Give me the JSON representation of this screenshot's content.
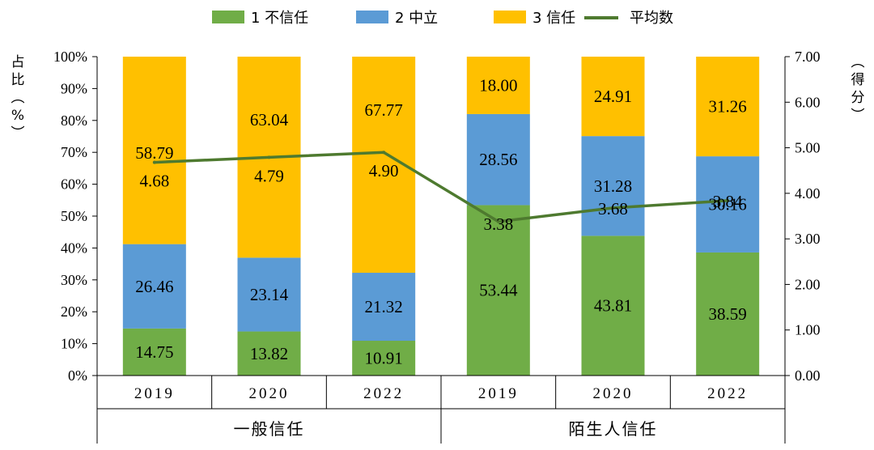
{
  "chart_data": {
    "type": "bar",
    "stacked": true,
    "categories": [
      "2019",
      "2020",
      "2022",
      "2019",
      "2020",
      "2022"
    ],
    "groups": [
      {
        "label": "一般信任",
        "categories": [
          0,
          1,
          2
        ]
      },
      {
        "label": "陌生人信任",
        "categories": [
          3,
          4,
          5
        ]
      }
    ],
    "series": [
      {
        "name": "1 不信任",
        "type": "bar",
        "color": "#70ad47",
        "values": [
          14.75,
          13.82,
          10.91,
          53.44,
          43.81,
          38.59
        ]
      },
      {
        "name": "2 中立",
        "type": "bar",
        "color": "#5b9bd5",
        "values": [
          26.46,
          23.14,
          21.32,
          28.56,
          31.28,
          30.16
        ]
      },
      {
        "name": "3 信任",
        "type": "bar",
        "color": "#ffc000",
        "values": [
          58.79,
          63.04,
          67.77,
          18.0,
          24.91,
          31.26
        ]
      },
      {
        "name": "平均数",
        "type": "line",
        "axis": "right",
        "color": "#4e7a2f",
        "values": [
          4.68,
          4.79,
          4.9,
          3.38,
          3.68,
          3.84
        ]
      }
    ],
    "y_left": {
      "label": "占比（%）",
      "ylim": [
        0,
        100
      ],
      "ticks": [
        "0%",
        "10%",
        "20%",
        "30%",
        "40%",
        "50%",
        "60%",
        "70%",
        "80%",
        "90%",
        "100%"
      ]
    },
    "y_right": {
      "label": "（得分）",
      "ylim": [
        0,
        7
      ],
      "ticks": [
        "0.00",
        "1.00",
        "2.00",
        "3.00",
        "4.00",
        "5.00",
        "6.00",
        "7.00"
      ]
    },
    "legend_position": "top",
    "grid": false
  }
}
